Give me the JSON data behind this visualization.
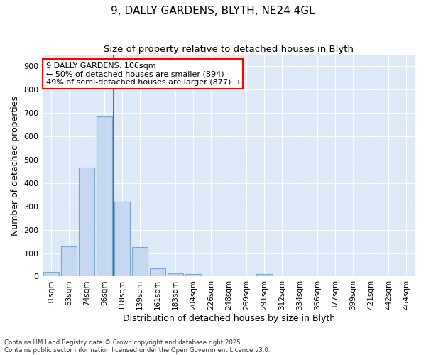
{
  "title1": "9, DALLY GARDENS, BLYTH, NE24 4GL",
  "title2": "Size of property relative to detached houses in Blyth",
  "xlabel": "Distribution of detached houses by size in Blyth",
  "ylabel": "Number of detached properties",
  "categories": [
    "31sqm",
    "53sqm",
    "74sqm",
    "96sqm",
    "118sqm",
    "139sqm",
    "161sqm",
    "183sqm",
    "204sqm",
    "226sqm",
    "248sqm",
    "269sqm",
    "291sqm",
    "312sqm",
    "334sqm",
    "356sqm",
    "377sqm",
    "399sqm",
    "421sqm",
    "442sqm",
    "464sqm"
  ],
  "values": [
    20,
    128,
    465,
    685,
    320,
    125,
    35,
    15,
    10,
    0,
    0,
    0,
    10,
    0,
    0,
    0,
    0,
    0,
    0,
    0,
    0
  ],
  "bar_color": "#c5d8ef",
  "bar_edge_color": "#7ba7d0",
  "red_line_x": 3.5,
  "annotation_line1": "9 DALLY GARDENS: 106sqm",
  "annotation_line2": "← 50% of detached houses are smaller (894)",
  "annotation_line3": "49% of semi-detached houses are larger (877) →",
  "annotation_box_color": "white",
  "annotation_box_edge_color": "red",
  "ylim": [
    0,
    950
  ],
  "yticks": [
    0,
    100,
    200,
    300,
    400,
    500,
    600,
    700,
    800,
    900
  ],
  "background_color": "#dce9f8",
  "grid_color": "white",
  "footer_line1": "Contains HM Land Registry data © Crown copyright and database right 2025.",
  "footer_line2": "Contains public sector information licensed under the Open Government Licence v3.0."
}
